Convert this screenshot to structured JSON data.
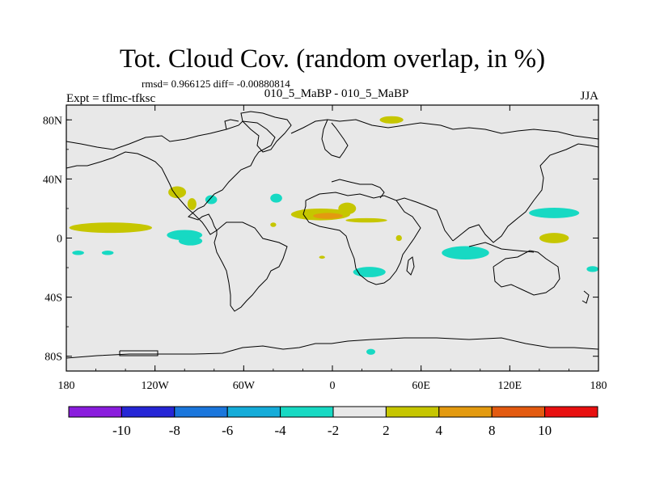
{
  "chart_data": {
    "type": "heatmap",
    "title": "Tot. Cloud Cov. (random overlap, in %)",
    "stats_line": "rmsd= 0.966125 diff= -0.00880814",
    "case_label": "010_5_MaBP - 010_5_MaBP",
    "left_label": "Expt = tflmc-tfksc",
    "season": "JJA",
    "x_ticks": [
      "180",
      "120W",
      "60W",
      "0",
      "60E",
      "120E",
      "180"
    ],
    "x_tick_values": [
      -180,
      -120,
      -60,
      0,
      60,
      120,
      180
    ],
    "y_ticks": [
      "80N",
      "40N",
      "0",
      "40S",
      "80S"
    ],
    "y_tick_values": [
      80,
      40,
      0,
      -40,
      -80
    ],
    "xlim": [
      -180,
      180
    ],
    "ylim": [
      -90,
      90
    ],
    "background_color": "#e8e8e8",
    "colorbar": {
      "levels": [
        "-10",
        "-8",
        "-6",
        "-4",
        "-2",
        "2",
        "4",
        "8",
        "10"
      ],
      "colors": [
        "#8a1ddd",
        "#2626d6",
        "#1a76dc",
        "#15acd9",
        "#17d9c3",
        "#e8e8e8",
        "#c6c600",
        "#e39a10",
        "#e35a10",
        "#e81010"
      ]
    },
    "anomalies": [
      {
        "lon": -150,
        "lat": 7,
        "rx": 28,
        "ry": 3.5,
        "level": "2 to 4"
      },
      {
        "lon": -100,
        "lat": 2,
        "rx": 12,
        "ry": 3.5,
        "level": "-4 to -2"
      },
      {
        "lon": -105,
        "lat": 31,
        "rx": 6,
        "ry": 4,
        "level": "2 to 4"
      },
      {
        "lon": -95,
        "lat": 23,
        "rx": 3,
        "ry": 4,
        "level": "2 to 4"
      },
      {
        "lon": -82,
        "lat": 26,
        "rx": 4,
        "ry": 3,
        "level": "-4 to -2"
      },
      {
        "lon": -172,
        "lat": -10,
        "rx": 4,
        "ry": 1.5,
        "level": "-4 to -2"
      },
      {
        "lon": -152,
        "lat": -10,
        "rx": 4,
        "ry": 1.5,
        "level": "-4 to -2"
      },
      {
        "lon": -38,
        "lat": 27,
        "rx": 4,
        "ry": 3,
        "level": "-4 to -2"
      },
      {
        "lon": -8,
        "lat": 16,
        "rx": 20,
        "ry": 4,
        "level": "2 to 4"
      },
      {
        "lon": -3,
        "lat": 15,
        "rx": 10,
        "ry": 2,
        "level": "4 to 8"
      },
      {
        "lon": 10,
        "lat": 20,
        "rx": 6,
        "ry": 4,
        "level": "2 to 4"
      },
      {
        "lon": 23,
        "lat": 12,
        "rx": 14,
        "ry": 1.5,
        "level": "2 to 4"
      },
      {
        "lon": 40,
        "lat": 80,
        "rx": 8,
        "ry": 2.5,
        "level": "2 to 4"
      },
      {
        "lon": 25,
        "lat": -23,
        "rx": 11,
        "ry": 3.5,
        "level": "-4 to -2"
      },
      {
        "lon": 90,
        "lat": -10,
        "rx": 16,
        "ry": 4.5,
        "level": "-4 to -2"
      },
      {
        "lon": 150,
        "lat": 17,
        "rx": 17,
        "ry": 3.5,
        "level": "-4 to -2"
      },
      {
        "lon": 150,
        "lat": 0,
        "rx": 10,
        "ry": 3.5,
        "level": "2 to 4"
      },
      {
        "lon": 176,
        "lat": -21,
        "rx": 4,
        "ry": 2,
        "level": "-4 to -2"
      },
      {
        "lon": 26,
        "lat": -77,
        "rx": 3,
        "ry": 2,
        "level": "-4 to -2"
      },
      {
        "lon": -96,
        "lat": -2,
        "rx": 8,
        "ry": 3,
        "level": "-4 to -2"
      },
      {
        "lon": -7,
        "lat": -13,
        "rx": 2,
        "ry": 1,
        "level": "2 to 4"
      },
      {
        "lon": -40,
        "lat": 9,
        "rx": 2,
        "ry": 1.5,
        "level": "2 to 4"
      },
      {
        "lon": 45,
        "lat": 0,
        "rx": 2,
        "ry": 2,
        "level": "2 to 4"
      }
    ]
  }
}
